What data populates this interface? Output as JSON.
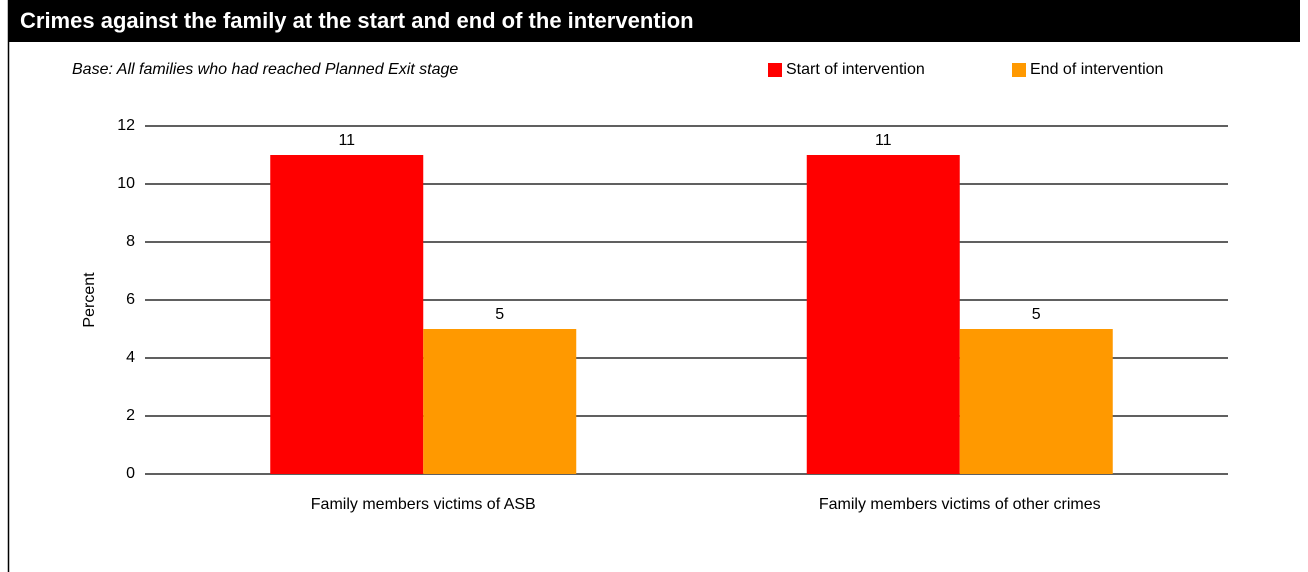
{
  "chart_data": {
    "type": "bar",
    "title": "Crimes against the family at the start and end of the intervention",
    "subtitle": "Base: All families who had reached Planned Exit stage",
    "ylabel": "Percent",
    "categories": [
      "Family members victims of ASB",
      "Family members victims of other crimes"
    ],
    "series": [
      {
        "name": "Start of intervention",
        "color": "#ff0000",
        "values": [
          11,
          11
        ]
      },
      {
        "name": "End of intervention",
        "color": "#ff9900",
        "values": [
          5,
          5
        ]
      }
    ],
    "ylim": [
      0,
      12
    ],
    "yticks": [
      0,
      2,
      4,
      6,
      8,
      10,
      12
    ],
    "grid": true,
    "legend": "top-right"
  }
}
